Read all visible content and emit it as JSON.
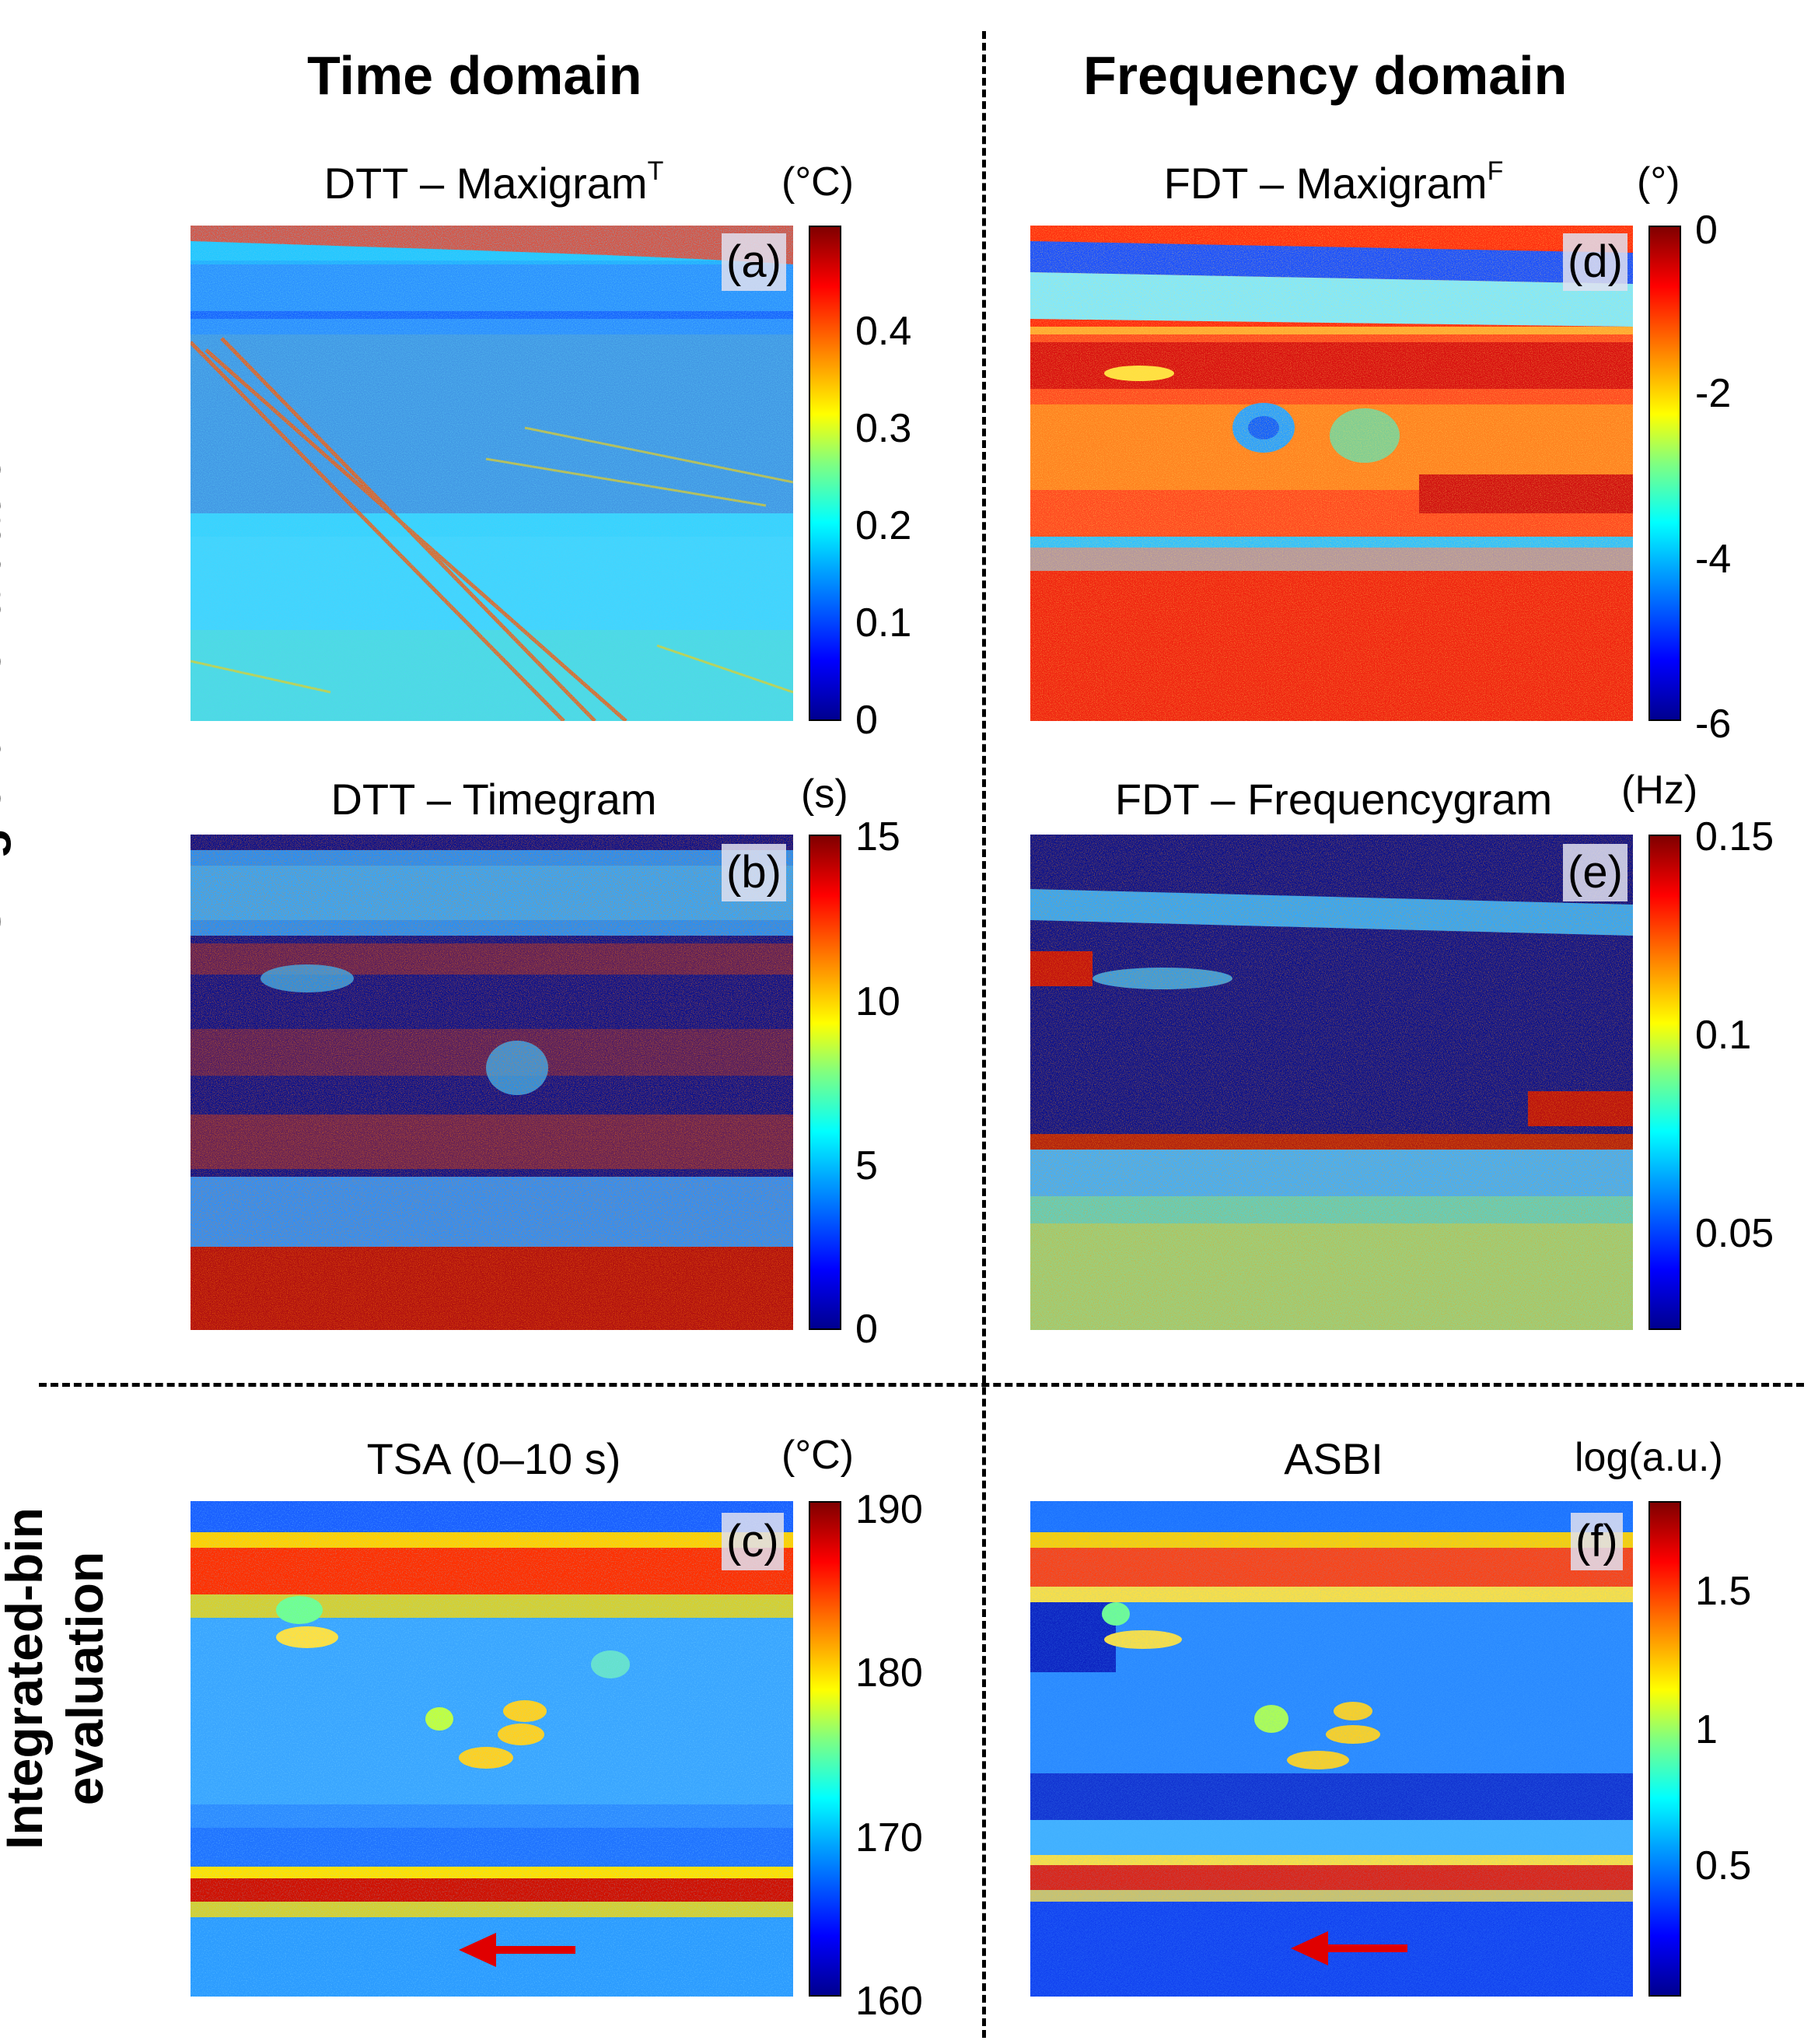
{
  "columns": {
    "time": "Time domain",
    "frequency": "Frequency domain"
  },
  "rows": {
    "single": "Single-bin evaluation",
    "integrated_line1": "Integrated-bin",
    "integrated_line2": "evaluation"
  },
  "panels": {
    "a": {
      "title": "DTT – Maxigram",
      "sup": "T",
      "label": "(a)",
      "unit": "(°C)",
      "ticks": [
        "0",
        "0.1",
        "0.2",
        "0.3",
        "0.4"
      ]
    },
    "b": {
      "title": "DTT – Timegram",
      "sup": "",
      "label": "(b)",
      "unit": "(s)",
      "ticks": [
        "0",
        "5",
        "10",
        "15"
      ]
    },
    "c": {
      "title": "TSA (0–10 s)",
      "sup": "",
      "label": "(c)",
      "unit": "(°C)",
      "ticks": [
        "160",
        "170",
        "180",
        "190"
      ]
    },
    "d": {
      "title": "FDT – Maxigram",
      "sup": "F",
      "label": "(d)",
      "unit": "(°)",
      "ticks": [
        "-6",
        "-4",
        "-2",
        "0"
      ]
    },
    "e": {
      "title": "FDT – Frequencygram",
      "sup": "",
      "label": "(e)",
      "unit": "(Hz)",
      "ticks": [
        "0.05",
        "0.1",
        "0.15"
      ]
    },
    "f": {
      "title": "ASBI",
      "sup": "",
      "label": "(f)",
      "unit": "log(a.u.)",
      "ticks": [
        "0.5",
        "1",
        "1.5"
      ]
    }
  },
  "colors": {
    "jet": [
      "#00008f",
      "#0000ff",
      "#00a0ff",
      "#00ffff",
      "#80ff80",
      "#ffff00",
      "#ff8000",
      "#ff0000",
      "#800000"
    ],
    "arrow": "#e00000"
  }
}
